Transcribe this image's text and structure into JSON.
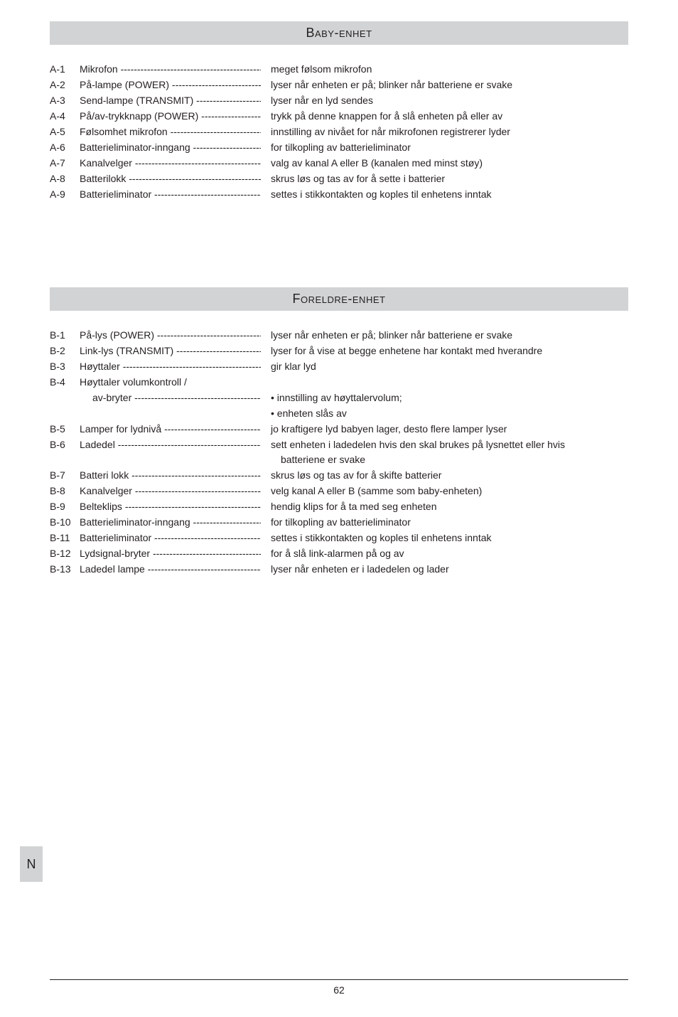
{
  "sections": [
    {
      "title": "Baby-enhet",
      "rows": [
        {
          "id": "A-1",
          "label": "Mikrofon ",
          "desc": "meget følsom mikrofon"
        },
        {
          "id": "A-2",
          "label": "På-lampe (POWER) ",
          "desc": "lyser når enheten er på; blinker når batteriene er svake"
        },
        {
          "id": "A-3",
          "label": "Send-lampe (TRANSMIT) ",
          "desc": "lyser når en lyd sendes"
        },
        {
          "id": "A-4",
          "label": "På/av-trykknapp (POWER) ",
          "desc": "trykk på denne knappen for å slå enheten på eller av"
        },
        {
          "id": "A-5",
          "label": "Følsomhet mikrofon ",
          "desc": "innstilling av nivået for når mikrofonen registrerer lyder"
        },
        {
          "id": "A-6",
          "label": "Batterieliminator-inngang ",
          "desc": "for tilkopling av batterieliminator"
        },
        {
          "id": "A-7",
          "label": "Kanalvelger ",
          "desc": "valg av kanal A eller B (kanalen med minst støy)"
        },
        {
          "id": "A-8",
          "label": "Batterilokk ",
          "desc": "skrus løs og tas av for å sette i batterier"
        },
        {
          "id": "A-9",
          "label": "Batterieliminator",
          "desc": "settes i stikkontakten og koples til enhetens inntak"
        }
      ]
    },
    {
      "title": "Foreldre-enhet",
      "rows": [
        {
          "id": "B-1",
          "label": "På-lys (POWER) ",
          "desc": "lyser når enheten er på; blinker når batteriene er svake"
        },
        {
          "id": "B-2",
          "label": "Link-lys (TRANSMIT) ",
          "desc": "lyser for å vise at begge enhetene har kontakt med hverandre"
        },
        {
          "id": "B-3",
          "label": "Høyttaler ",
          "desc": "gir klar lyd"
        },
        {
          "id": "B-4",
          "label": "Høyttaler volumkontroll /",
          "nolabeldash": true,
          "desc": ""
        },
        {
          "id": "",
          "label": "av-bryter ",
          "indent": true,
          "desc": "• innstilling av høyttalervolum;"
        },
        {
          "id": "",
          "label": "",
          "nolabel": true,
          "desc": "• enheten slås av"
        },
        {
          "id": "B-5",
          "label": "Lamper for lydnivå ",
          "desc": "jo kraftigere lyd babyen lager, desto flere lamper lyser"
        },
        {
          "id": "B-6",
          "label": "Ladedel ",
          "desc": "sett enheten i ladedelen hvis den skal brukes på lysnettet eller hvis",
          "descSub": "batteriene er svake"
        },
        {
          "id": "B-7",
          "label": "Batteri lokk ",
          "desc": "skrus løs og tas av for å skifte batterier"
        },
        {
          "id": "B-8",
          "label": "Kanalvelger ",
          "desc": "velg kanal A eller B (samme som baby-enheten)"
        },
        {
          "id": "B-9",
          "label": "Belteklips ",
          "desc": "hendig klips for å ta med seg enheten"
        },
        {
          "id": "B-10",
          "label": "Batterieliminator-inngang ",
          "desc": "for tilkopling av batterieliminator"
        },
        {
          "id": "B-11",
          "label": "Batterieliminator",
          "desc": "settes i stikkontakten og koples til enhetens inntak"
        },
        {
          "id": "B-12",
          "label": "Lydsignal-bryter ",
          "desc": "for å slå link-alarmen på og av"
        },
        {
          "id": "B-13",
          "label": "Ladedel lampe ",
          "desc": "lyser når enheten er i ladedelen og lader"
        }
      ]
    }
  ],
  "tab": "N",
  "pageNumber": "62",
  "colors": {
    "headerBg": "#d1d3d4",
    "text": "#231f20",
    "pageBg": "#ffffff"
  }
}
